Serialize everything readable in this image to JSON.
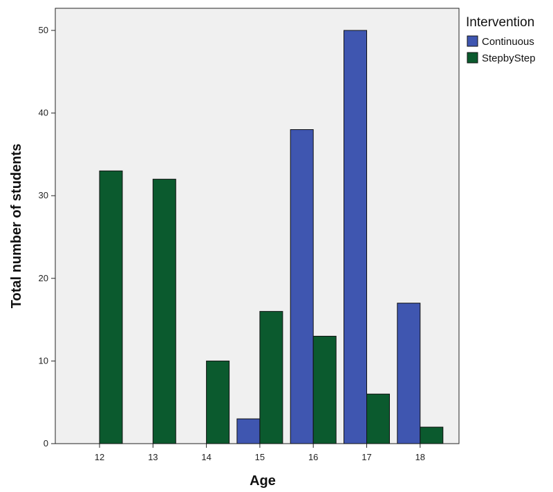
{
  "chart_data": {
    "type": "bar",
    "title": "",
    "xlabel": "Age",
    "ylabel": "Total number of students",
    "ylim": [
      0,
      50
    ],
    "yticks": [
      0,
      10,
      20,
      30,
      40,
      50
    ],
    "categories": [
      "12",
      "13",
      "14",
      "15",
      "16",
      "17",
      "18"
    ],
    "legend": {
      "title": "Intervention",
      "placement": "right"
    },
    "grid": false,
    "series": [
      {
        "name": "Continuous",
        "color": "#3f56b0",
        "values": [
          0,
          0,
          0,
          3,
          38,
          50,
          17
        ]
      },
      {
        "name": "StepbyStep",
        "color": "#0b5a2e",
        "values": [
          33,
          32,
          10,
          16,
          13,
          6,
          2
        ]
      }
    ]
  }
}
